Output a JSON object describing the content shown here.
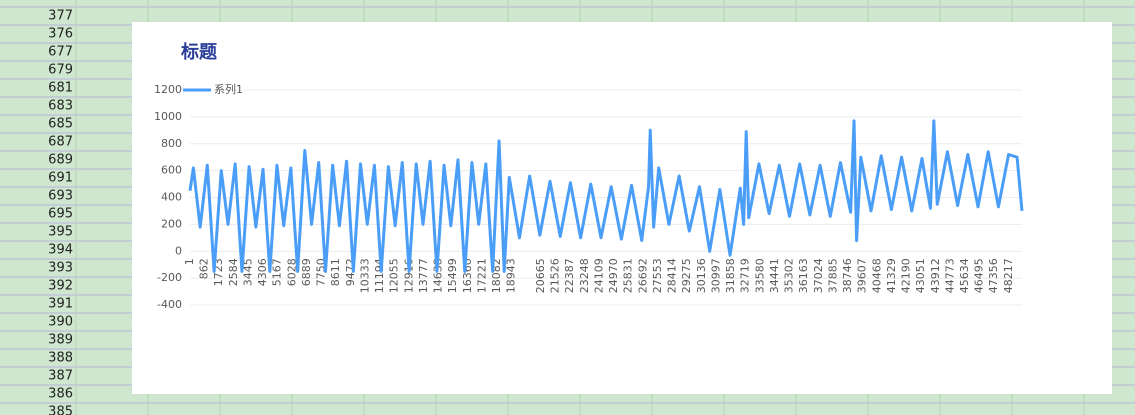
{
  "sheet": {
    "cells": [
      377,
      376,
      677,
      679,
      681,
      683,
      685,
      687,
      689,
      691,
      693,
      695,
      395,
      394,
      393,
      392,
      391,
      390,
      389,
      388,
      387,
      386,
      385
    ]
  },
  "chart_data": {
    "type": "line",
    "title": "标题",
    "x": [
      1,
      200,
      600,
      1020,
      1420,
      1840,
      2240,
      2660,
      3060,
      3480,
      3880,
      4300,
      4700,
      5120,
      5520,
      5940,
      6340,
      6760,
      7160,
      7580,
      7980,
      8400,
      8800,
      9220,
      9620,
      10040,
      10440,
      10860,
      11260,
      11680,
      12080,
      12500,
      12900,
      13320,
      13720,
      14140,
      14540,
      14960,
      15360,
      15780,
      16180,
      16600,
      17000,
      17420,
      17820,
      18200,
      18500,
      18800,
      19400,
      20000,
      20600,
      21200,
      21800,
      22400,
      23000,
      23600,
      24200,
      24800,
      25400,
      26000,
      26600,
      27000,
      27100,
      27300,
      27600,
      28200,
      28800,
      29400,
      30000,
      30600,
      31200,
      31800,
      32400,
      32600,
      32750,
      32900,
      33500,
      34100,
      34700,
      35300,
      35900,
      36500,
      37100,
      37700,
      38300,
      38900,
      39100,
      39250,
      39500,
      40100,
      40700,
      41300,
      41900,
      42500,
      43100,
      43600,
      43800,
      44000,
      44600,
      45200,
      45800,
      46400,
      47000,
      47600,
      48200,
      48700,
      48990
    ],
    "series": [
      {
        "name": "系列1",
        "color": "#4a9ef8",
        "values": [
          450,
          620,
          180,
          640,
          -150,
          600,
          200,
          650,
          -150,
          630,
          180,
          610,
          -150,
          640,
          190,
          620,
          -150,
          750,
          200,
          660,
          -150,
          640,
          190,
          670,
          -150,
          650,
          200,
          640,
          -150,
          630,
          190,
          660,
          -150,
          650,
          200,
          670,
          -150,
          640,
          190,
          680,
          -150,
          660,
          200,
          650,
          -150,
          820,
          -150,
          550,
          100,
          560,
          120,
          520,
          110,
          510,
          100,
          500,
          100,
          480,
          90,
          490,
          80,
          480,
          900,
          180,
          620,
          200,
          560,
          150,
          480,
          0,
          460,
          -30,
          470,
          200,
          890,
          250,
          650,
          280,
          640,
          260,
          650,
          270,
          640,
          260,
          660,
          290,
          970,
          80,
          700,
          300,
          710,
          310,
          700,
          300,
          690,
          320,
          970,
          350,
          740,
          340,
          720,
          330,
          740,
          330,
          720,
          700,
          300
        ]
      }
    ],
    "xlim": [
      1,
      48990
    ],
    "xticks": [
      1,
      862,
      1723,
      2584,
      3445,
      4306,
      5167,
      6028,
      6889,
      7750,
      8611,
      9472,
      10333,
      11194,
      12055,
      12916,
      13777,
      14638,
      15499,
      16360,
      17221,
      18082,
      18943,
      20665,
      21526,
      22387,
      23248,
      24109,
      24970,
      25831,
      26692,
      27553,
      28414,
      29275,
      30136,
      30997,
      31858,
      32719,
      33580,
      34441,
      35302,
      36163,
      37024,
      37885,
      38746,
      39607,
      40468,
      41329,
      42190,
      43051,
      43912,
      44773,
      45634,
      46495,
      47356,
      48217
    ],
    "ylim": [
      -400,
      1200
    ],
    "yticks": [
      -400,
      -200,
      0,
      200,
      400,
      600,
      800,
      1000,
      1200
    ],
    "grid": true,
    "legend": "top-left"
  }
}
